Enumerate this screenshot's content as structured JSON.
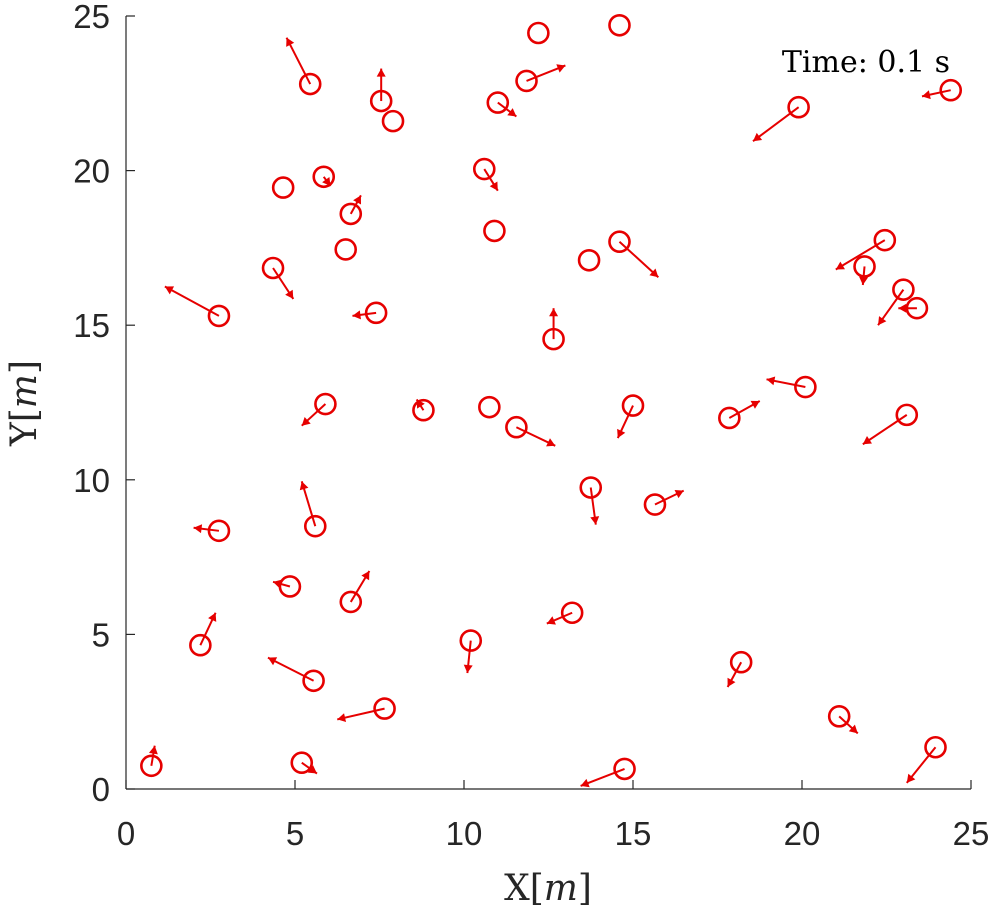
{
  "chart_data": {
    "type": "scatter",
    "title": "",
    "annotation": "Time:  0.1 s",
    "xlabel": {
      "main": "X",
      "unit": "m"
    },
    "ylabel": {
      "main": "Y",
      "unit": "m"
    },
    "xlim": [
      0,
      25
    ],
    "ylim": [
      0,
      25
    ],
    "xticks": [
      0,
      5,
      10,
      15,
      20,
      25
    ],
    "yticks": [
      0,
      5,
      10,
      15,
      20,
      25
    ],
    "xtick_labels": [
      "0",
      "5",
      "10",
      "15",
      "20",
      "25"
    ],
    "ytick_labels": [
      "0",
      "5",
      "10",
      "15",
      "20",
      "25"
    ],
    "grid": false,
    "marker": "circle",
    "color": "#e60000",
    "series": [
      {
        "points": [
          {
            "x": 12.2,
            "y": 24.45,
            "dx": 0,
            "dy": 0
          },
          {
            "x": 14.6,
            "y": 24.7,
            "dx": 0,
            "dy": 0
          },
          {
            "x": 5.45,
            "y": 22.8,
            "dx": -0.7,
            "dy": 1.5
          },
          {
            "x": 7.55,
            "y": 22.25,
            "dx": 0.0,
            "dy": 1.05
          },
          {
            "x": 7.9,
            "y": 21.6,
            "dx": 0,
            "dy": 0
          },
          {
            "x": 11.0,
            "y": 22.2,
            "dx": 0.55,
            "dy": -0.45
          },
          {
            "x": 11.85,
            "y": 22.9,
            "dx": 1.15,
            "dy": 0.5
          },
          {
            "x": 19.9,
            "y": 22.05,
            "dx": -1.35,
            "dy": -1.1
          },
          {
            "x": 24.4,
            "y": 22.6,
            "dx": -0.85,
            "dy": -0.2
          },
          {
            "x": 4.65,
            "y": 19.45,
            "dx": 0,
            "dy": 0
          },
          {
            "x": 5.85,
            "y": 19.8,
            "dx": 0.2,
            "dy": -0.3
          },
          {
            "x": 10.6,
            "y": 20.05,
            "dx": 0.4,
            "dy": -0.7
          },
          {
            "x": 6.65,
            "y": 18.6,
            "dx": 0.3,
            "dy": 0.6
          },
          {
            "x": 10.9,
            "y": 18.05,
            "dx": 0,
            "dy": 0
          },
          {
            "x": 6.5,
            "y": 17.45,
            "dx": 0,
            "dy": 0
          },
          {
            "x": 4.35,
            "y": 16.85,
            "dx": 0.6,
            "dy": -1.0
          },
          {
            "x": 13.7,
            "y": 17.1,
            "dx": 0,
            "dy": 0
          },
          {
            "x": 14.6,
            "y": 17.7,
            "dx": 1.15,
            "dy": -1.15
          },
          {
            "x": 22.45,
            "y": 17.75,
            "dx": -1.45,
            "dy": -0.95
          },
          {
            "x": 21.85,
            "y": 16.9,
            "dx": -0.05,
            "dy": -0.6
          },
          {
            "x": 23.0,
            "y": 16.15,
            "dx": -0.75,
            "dy": -1.15
          },
          {
            "x": 23.4,
            "y": 15.55,
            "dx": -0.55,
            "dy": 0.0
          },
          {
            "x": 2.75,
            "y": 15.3,
            "dx": -1.6,
            "dy": 0.95
          },
          {
            "x": 7.4,
            "y": 15.4,
            "dx": -0.7,
            "dy": -0.1
          },
          {
            "x": 12.65,
            "y": 14.55,
            "dx": 0.0,
            "dy": 1.0
          },
          {
            "x": 20.1,
            "y": 13.0,
            "dx": -1.15,
            "dy": 0.25
          },
          {
            "x": 5.9,
            "y": 12.45,
            "dx": -0.7,
            "dy": -0.7
          },
          {
            "x": 8.8,
            "y": 12.25,
            "dx": -0.2,
            "dy": 0.35
          },
          {
            "x": 10.75,
            "y": 12.35,
            "dx": 0,
            "dy": 0
          },
          {
            "x": 11.55,
            "y": 11.7,
            "dx": 1.15,
            "dy": -0.6
          },
          {
            "x": 15.0,
            "y": 12.4,
            "dx": -0.45,
            "dy": -1.05
          },
          {
            "x": 17.85,
            "y": 12.0,
            "dx": 0.9,
            "dy": 0.55
          },
          {
            "x": 23.1,
            "y": 12.1,
            "dx": -1.3,
            "dy": -0.95
          },
          {
            "x": 13.75,
            "y": 9.75,
            "dx": 0.15,
            "dy": -1.2
          },
          {
            "x": 15.65,
            "y": 9.2,
            "dx": 0.85,
            "dy": 0.45
          },
          {
            "x": 2.75,
            "y": 8.35,
            "dx": -0.75,
            "dy": 0.1
          },
          {
            "x": 5.6,
            "y": 8.5,
            "dx": -0.4,
            "dy": 1.45
          },
          {
            "x": 4.85,
            "y": 6.55,
            "dx": -0.5,
            "dy": 0.15
          },
          {
            "x": 6.65,
            "y": 6.05,
            "dx": 0.55,
            "dy": 1.0
          },
          {
            "x": 2.2,
            "y": 4.65,
            "dx": 0.45,
            "dy": 1.05
          },
          {
            "x": 5.55,
            "y": 3.5,
            "dx": -1.35,
            "dy": 0.75
          },
          {
            "x": 7.65,
            "y": 2.6,
            "dx": -1.4,
            "dy": -0.35
          },
          {
            "x": 10.2,
            "y": 4.8,
            "dx": -0.1,
            "dy": -1.05
          },
          {
            "x": 13.2,
            "y": 5.7,
            "dx": -0.75,
            "dy": -0.35
          },
          {
            "x": 18.2,
            "y": 4.1,
            "dx": -0.4,
            "dy": -0.8
          },
          {
            "x": 21.1,
            "y": 2.35,
            "dx": 0.55,
            "dy": -0.55
          },
          {
            "x": 23.95,
            "y": 1.35,
            "dx": -0.85,
            "dy": -1.15
          },
          {
            "x": 0.75,
            "y": 0.75,
            "dx": 0.1,
            "dy": 0.65
          },
          {
            "x": 5.2,
            "y": 0.85,
            "dx": 0.45,
            "dy": -0.35
          },
          {
            "x": 14.75,
            "y": 0.65,
            "dx": -1.3,
            "dy": -0.55
          }
        ]
      }
    ]
  }
}
